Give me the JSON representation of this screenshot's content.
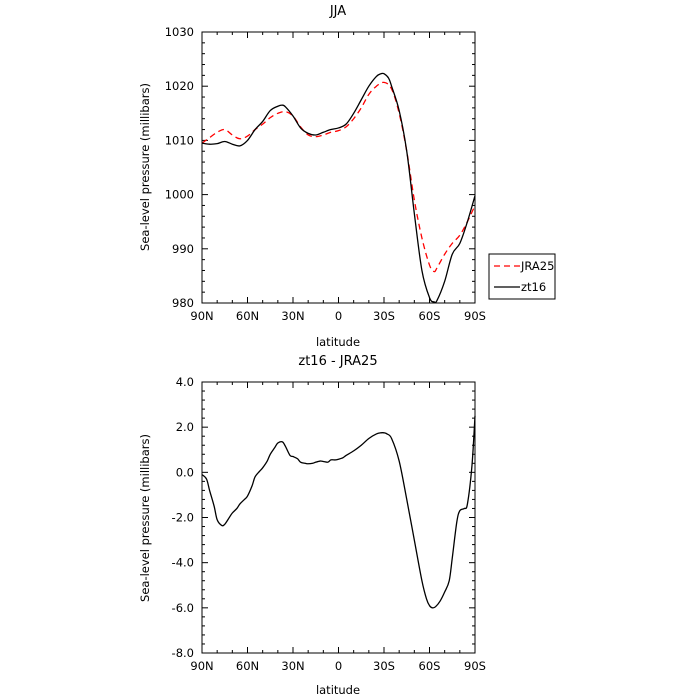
{
  "chart_data": [
    {
      "type": "line",
      "title": "JJA",
      "xlabel": "latitude",
      "ylabel": "Sea-level pressure (millibars)",
      "x_ticks": [
        {
          "value": 90,
          "label": "90N"
        },
        {
          "value": 60,
          "label": "60N"
        },
        {
          "value": 30,
          "label": "30N"
        },
        {
          "value": 0,
          "label": "0"
        },
        {
          "value": -30,
          "label": "30S"
        },
        {
          "value": -60,
          "label": "60S"
        },
        {
          "value": -90,
          "label": "90S"
        }
      ],
      "xlim": [
        90,
        -90
      ],
      "ylim": [
        980,
        1030
      ],
      "y_ticks": [
        {
          "value": 980,
          "label": "980"
        },
        {
          "value": 990,
          "label": "990"
        },
        {
          "value": 1000,
          "label": "1000"
        },
        {
          "value": 1010,
          "label": "1010"
        },
        {
          "value": 1020,
          "label": "1020"
        },
        {
          "value": 1030,
          "label": "1030"
        }
      ],
      "legend_position": "right",
      "series": [
        {
          "name": "JRA25",
          "color": "#ff0000",
          "dash": "dashed",
          "x": [
            90,
            85,
            80,
            75,
            70,
            65,
            60,
            55,
            50,
            45,
            40,
            35,
            30,
            25,
            20,
            15,
            10,
            5,
            0,
            -5,
            -10,
            -15,
            -20,
            -25,
            -30,
            -35,
            -40,
            -45,
            -50,
            -55,
            -60,
            -63,
            -65,
            -70,
            -75,
            -80,
            -85,
            -90
          ],
          "y": [
            1009.5,
            1010.5,
            1011.5,
            1012,
            1011,
            1010.3,
            1010.8,
            1012,
            1013,
            1014.2,
            1015,
            1015.3,
            1014.5,
            1012.5,
            1011,
            1010.7,
            1011,
            1011.5,
            1011.8,
            1012.5,
            1014,
            1016,
            1018.5,
            1020,
            1020.7,
            1019.5,
            1015,
            1008,
            999,
            992,
            987,
            985.8,
            986.5,
            989,
            991,
            992.5,
            995,
            998
          ]
        },
        {
          "name": "zt16",
          "color": "#000000",
          "dash": "solid",
          "x": [
            90,
            85,
            80,
            75,
            70,
            65,
            60,
            55,
            50,
            45,
            40,
            37,
            35,
            30,
            25,
            20,
            15,
            10,
            5,
            0,
            -5,
            -10,
            -15,
            -20,
            -25,
            -28,
            -30,
            -33,
            -35,
            -40,
            -45,
            -50,
            -55,
            -60,
            -63,
            -65,
            -70,
            -75,
            -80,
            -85,
            -90
          ],
          "y": [
            1009.5,
            1009.3,
            1009.4,
            1009.8,
            1009.3,
            1009,
            1010,
            1012,
            1013.5,
            1015.5,
            1016.3,
            1016.5,
            1016.2,
            1014.5,
            1012.3,
            1011.3,
            1011,
            1011.5,
            1012,
            1012.3,
            1013,
            1015,
            1017.5,
            1020,
            1021.8,
            1022.3,
            1022.3,
            1021.5,
            1020,
            1015.5,
            1008,
            996.5,
            986,
            981,
            980.2,
            980.5,
            984,
            989,
            991,
            995,
            999.8
          ]
        }
      ]
    },
    {
      "type": "line",
      "title": "zt16 - JRA25",
      "xlabel": "latitude",
      "ylabel": "Sea-level pressure (millibars)",
      "x_ticks": [
        {
          "value": 90,
          "label": "90N"
        },
        {
          "value": 60,
          "label": "60N"
        },
        {
          "value": 30,
          "label": "30N"
        },
        {
          "value": 0,
          "label": "0"
        },
        {
          "value": -30,
          "label": "30S"
        },
        {
          "value": -60,
          "label": "60S"
        },
        {
          "value": -90,
          "label": "90S"
        }
      ],
      "xlim": [
        90,
        -90
      ],
      "ylim": [
        -8,
        4
      ],
      "y_ticks": [
        {
          "value": 4,
          "label": "4.0"
        },
        {
          "value": 2,
          "label": "2.0"
        },
        {
          "value": 0,
          "label": "0.0"
        },
        {
          "value": -2,
          "label": "-2.0"
        },
        {
          "value": -4,
          "label": "-4.0"
        },
        {
          "value": -6,
          "label": "-6.0"
        },
        {
          "value": -8,
          "label": "-8.0"
        }
      ],
      "series": [
        {
          "color": "#000000",
          "dash": "solid",
          "x": [
            90,
            87,
            85,
            82,
            80,
            77,
            75,
            72,
            70,
            67,
            65,
            62,
            60,
            57,
            55,
            52,
            50,
            47,
            45,
            42,
            40,
            37,
            35,
            32,
            30,
            27,
            25,
            22,
            20,
            17,
            15,
            12,
            10,
            7,
            5,
            2,
            0,
            -3,
            -5,
            -10,
            -15,
            -20,
            -25,
            -28,
            -30,
            -32,
            -35,
            -40,
            -45,
            -50,
            -55,
            -58,
            -60,
            -62,
            -64,
            -67,
            -70,
            -73,
            -75,
            -78,
            -80,
            -83,
            -85,
            -88,
            -90
          ],
          "y": [
            -0.1,
            -0.3,
            -0.8,
            -1.5,
            -2.1,
            -2.35,
            -2.3,
            -2.0,
            -1.8,
            -1.6,
            -1.4,
            -1.2,
            -1.05,
            -0.6,
            -0.2,
            0.05,
            0.2,
            0.5,
            0.8,
            1.1,
            1.3,
            1.35,
            1.15,
            0.75,
            0.7,
            0.6,
            0.45,
            0.4,
            0.38,
            0.4,
            0.45,
            0.5,
            0.48,
            0.45,
            0.55,
            0.55,
            0.58,
            0.65,
            0.75,
            0.95,
            1.2,
            1.5,
            1.7,
            1.75,
            1.75,
            1.7,
            1.5,
            0.5,
            -1.2,
            -3.0,
            -4.8,
            -5.6,
            -5.9,
            -6.0,
            -5.95,
            -5.7,
            -5.3,
            -4.8,
            -3.8,
            -2.2,
            -1.7,
            -1.6,
            -1.4,
            0.3,
            2.5
          ]
        }
      ]
    }
  ]
}
